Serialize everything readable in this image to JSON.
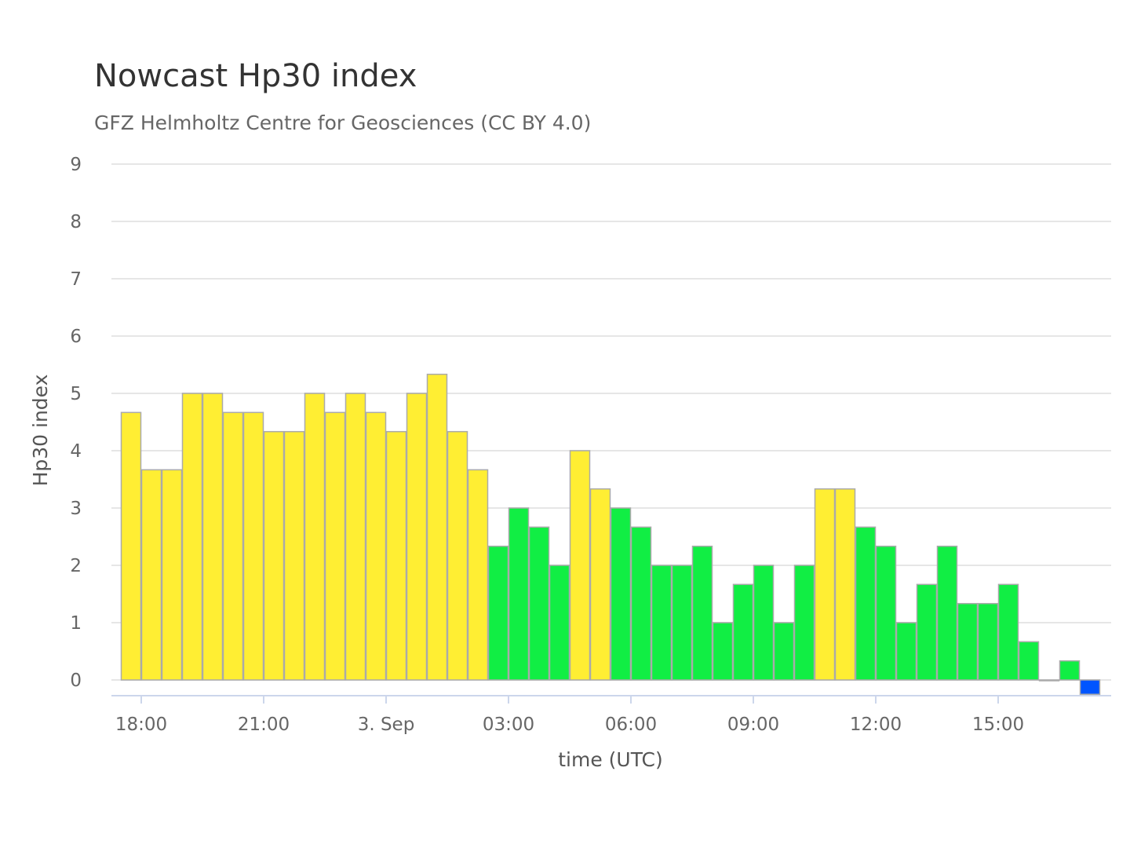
{
  "chart_data": {
    "type": "bar",
    "title": "Nowcast Hp30 index",
    "subtitle": "GFZ Helmholtz Centre for Geosciences (CC BY 4.0)",
    "xlabel": "time (UTC)",
    "ylabel": "Hp30 index",
    "ylim": [
      0,
      9
    ],
    "yticks": [
      0,
      1,
      2,
      3,
      4,
      5,
      6,
      7,
      8,
      9
    ],
    "x_tick_labels": [
      "18:00",
      "21:00",
      "3. Sep",
      "03:00",
      "06:00",
      "09:00",
      "12:00",
      "15:00"
    ],
    "x_tick_times": [
      "2 Sep 18:00",
      "2 Sep 21:00",
      "3 Sep 00:00",
      "3 Sep 03:00",
      "3 Sep 06:00",
      "3 Sep 09:00",
      "3 Sep 12:00",
      "3 Sep 15:00"
    ],
    "bar_interval": "30 min",
    "first_bar_start": "2 Sep 17:30",
    "grid": true,
    "legend": "none",
    "colors": {
      "elevated": "#ffee33",
      "normal": "#11ee44",
      "low": "#0055ff"
    },
    "bars": [
      {
        "start": "17:30",
        "value": 4.667,
        "color": "elevated"
      },
      {
        "start": "18:00",
        "value": 3.667,
        "color": "elevated"
      },
      {
        "start": "18:30",
        "value": 3.667,
        "color": "elevated"
      },
      {
        "start": "19:00",
        "value": 5.0,
        "color": "elevated"
      },
      {
        "start": "19:30",
        "value": 5.0,
        "color": "elevated"
      },
      {
        "start": "20:00",
        "value": 4.667,
        "color": "elevated"
      },
      {
        "start": "20:30",
        "value": 4.667,
        "color": "elevated"
      },
      {
        "start": "21:00",
        "value": 4.333,
        "color": "elevated"
      },
      {
        "start": "21:30",
        "value": 4.333,
        "color": "elevated"
      },
      {
        "start": "22:00",
        "value": 5.0,
        "color": "elevated"
      },
      {
        "start": "22:30",
        "value": 4.667,
        "color": "elevated"
      },
      {
        "start": "23:00",
        "value": 5.0,
        "color": "elevated"
      },
      {
        "start": "23:30",
        "value": 4.667,
        "color": "elevated"
      },
      {
        "start": "00:00",
        "value": 4.333,
        "color": "elevated"
      },
      {
        "start": "00:30",
        "value": 5.0,
        "color": "elevated"
      },
      {
        "start": "01:00",
        "value": 5.333,
        "color": "elevated"
      },
      {
        "start": "01:30",
        "value": 4.333,
        "color": "elevated"
      },
      {
        "start": "02:00",
        "value": 3.667,
        "color": "elevated"
      },
      {
        "start": "02:30",
        "value": 2.333,
        "color": "normal"
      },
      {
        "start": "03:00",
        "value": 3.0,
        "color": "normal"
      },
      {
        "start": "03:30",
        "value": 2.667,
        "color": "normal"
      },
      {
        "start": "04:00",
        "value": 2.0,
        "color": "normal"
      },
      {
        "start": "04:30",
        "value": 4.0,
        "color": "elevated"
      },
      {
        "start": "05:00",
        "value": 3.333,
        "color": "elevated"
      },
      {
        "start": "05:30",
        "value": 3.0,
        "color": "normal"
      },
      {
        "start": "06:00",
        "value": 2.667,
        "color": "normal"
      },
      {
        "start": "06:30",
        "value": 2.0,
        "color": "normal"
      },
      {
        "start": "07:00",
        "value": 2.0,
        "color": "normal"
      },
      {
        "start": "07:30",
        "value": 2.333,
        "color": "normal"
      },
      {
        "start": "08:00",
        "value": 1.0,
        "color": "normal"
      },
      {
        "start": "08:30",
        "value": 1.667,
        "color": "normal"
      },
      {
        "start": "09:00",
        "value": 2.0,
        "color": "normal"
      },
      {
        "start": "09:30",
        "value": 1.0,
        "color": "normal"
      },
      {
        "start": "10:00",
        "value": 2.0,
        "color": "normal"
      },
      {
        "start": "10:30",
        "value": 3.333,
        "color": "elevated"
      },
      {
        "start": "11:00",
        "value": 3.333,
        "color": "elevated"
      },
      {
        "start": "11:30",
        "value": 2.667,
        "color": "normal"
      },
      {
        "start": "12:00",
        "value": 2.333,
        "color": "normal"
      },
      {
        "start": "12:30",
        "value": 1.0,
        "color": "normal"
      },
      {
        "start": "13:00",
        "value": 1.667,
        "color": "normal"
      },
      {
        "start": "13:30",
        "value": 2.333,
        "color": "normal"
      },
      {
        "start": "14:00",
        "value": 1.333,
        "color": "normal"
      },
      {
        "start": "14:30",
        "value": 1.333,
        "color": "normal"
      },
      {
        "start": "15:00",
        "value": 1.667,
        "color": "normal"
      },
      {
        "start": "15:30",
        "value": 0.667,
        "color": "normal"
      },
      {
        "start": "16:00",
        "value": 0.0,
        "color": "normal"
      },
      {
        "start": "16:30",
        "value": 0.333,
        "color": "normal"
      },
      {
        "start": "17:00",
        "value": -0.25,
        "color": "low"
      }
    ]
  }
}
